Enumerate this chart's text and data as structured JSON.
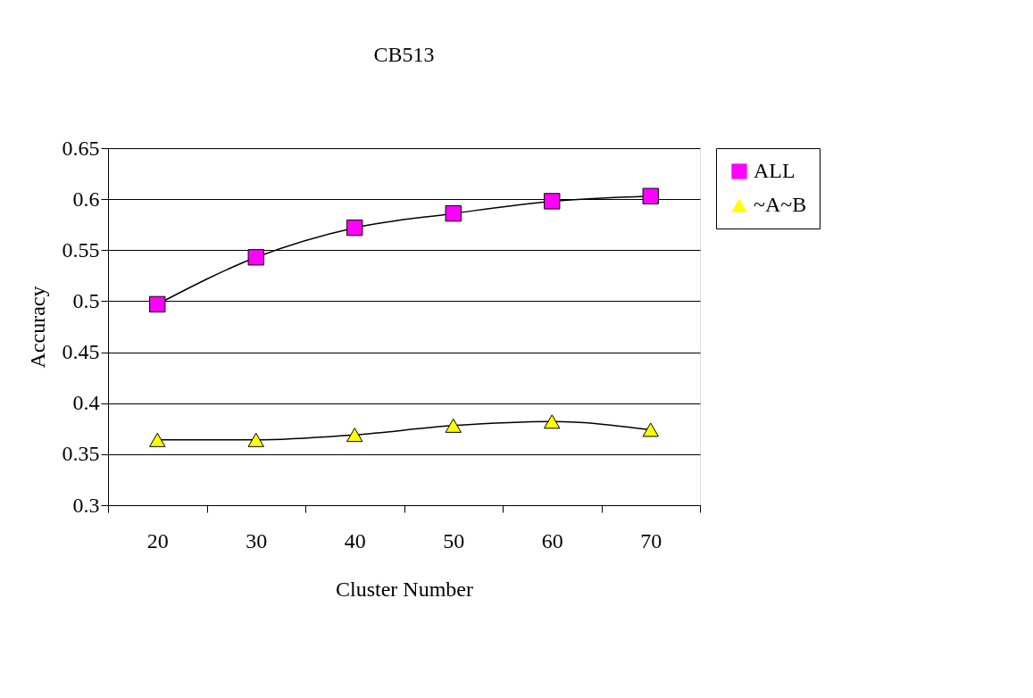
{
  "chart_data": {
    "type": "line",
    "title": "CB513",
    "xlabel": "Cluster Number",
    "ylabel": "Accuracy",
    "categories": [
      "20",
      "30",
      "40",
      "50",
      "60",
      "70"
    ],
    "series": [
      {
        "name": "ALL",
        "color": "#ff00ff",
        "marker": "square",
        "values": [
          0.497,
          0.543,
          0.572,
          0.586,
          0.598,
          0.603
        ]
      },
      {
        "name": "~A~B",
        "color": "#ffff00",
        "marker": "triangle",
        "values": [
          0.364,
          0.364,
          0.369,
          0.378,
          0.382,
          0.374
        ]
      }
    ],
    "ylim": [
      0.3,
      0.65
    ],
    "yticks": [
      0.3,
      0.35,
      0.4,
      0.45,
      0.5,
      0.55,
      0.6,
      0.65
    ],
    "grid": "y",
    "legend": "right"
  }
}
